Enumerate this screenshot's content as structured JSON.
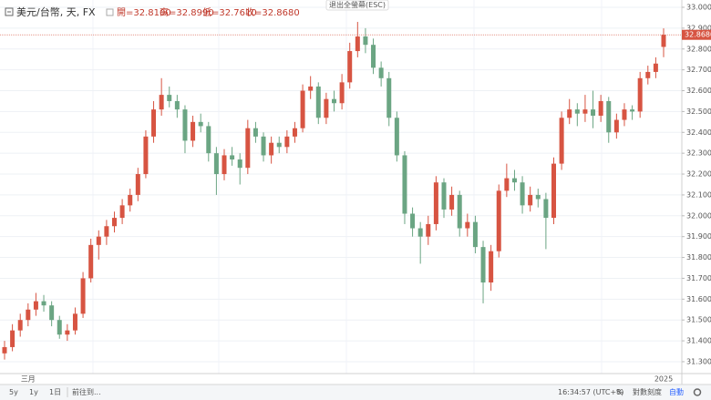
{
  "chart_data": {
    "type": "candlestick",
    "title": "美元/台幣, 天, FX",
    "ohlc_legend": [
      "開=32.8100",
      "高=32.8990",
      "低=32.7610",
      "收=32.8680"
    ],
    "up_color": "#d75442",
    "down_color": "#6ba583",
    "grid": true,
    "ylim": [
      31.243,
      33.035
    ],
    "yticks": [
      {
        "value": 31.3,
        "label": "31.3000"
      },
      {
        "value": 31.4,
        "label": "31.4000"
      },
      {
        "value": 31.5,
        "label": "31.5000"
      },
      {
        "value": 31.6,
        "label": "31.6000"
      },
      {
        "value": 31.7,
        "label": "31.7000"
      },
      {
        "value": 31.8,
        "label": "31.8000"
      },
      {
        "value": 31.9,
        "label": "31.9000"
      },
      {
        "value": 32.0,
        "label": "32.0000"
      },
      {
        "value": 32.1,
        "label": "32.1000"
      },
      {
        "value": 32.2,
        "label": "32.2000"
      },
      {
        "value": 32.3,
        "label": "32.3000"
      },
      {
        "value": 32.4,
        "label": "32.4000"
      },
      {
        "value": 32.5,
        "label": "32.5000"
      },
      {
        "value": 32.6,
        "label": "32.6000"
      },
      {
        "value": 32.7,
        "label": "32.7000"
      },
      {
        "value": 32.8,
        "label": "32.8000"
      },
      {
        "value": 32.9,
        "label": "32.9000"
      },
      {
        "value": 33.0,
        "label": "33.0000"
      }
    ],
    "last_price": {
      "value": 32.868,
      "label": "32.8680"
    },
    "categories": [
      null,
      null,
      null,
      "三月",
      null,
      null,
      null,
      null,
      null,
      null,
      null,
      null,
      null,
      null,
      null,
      null,
      null,
      null,
      null,
      null,
      null,
      null,
      null,
      null,
      null,
      null,
      null,
      null,
      null,
      null,
      null,
      null,
      null,
      null,
      null,
      null,
      null,
      null,
      null,
      null,
      null,
      null,
      null,
      null,
      null,
      null,
      null,
      null,
      null,
      null,
      null,
      null,
      null,
      null,
      null,
      null,
      null,
      null,
      null,
      null,
      null,
      null,
      null,
      null,
      null,
      null,
      null,
      null,
      null,
      null,
      null,
      null,
      null,
      null,
      null,
      null,
      null,
      null,
      null,
      null,
      null,
      null,
      null,
      null,
      "2025"
    ],
    "candles": [
      [
        31.34,
        31.4,
        31.31,
        31.37
      ],
      [
        31.37,
        31.48,
        31.35,
        31.45
      ],
      [
        31.45,
        31.53,
        31.42,
        31.5
      ],
      [
        31.5,
        31.58,
        31.47,
        31.55
      ],
      [
        31.55,
        31.63,
        31.52,
        31.59
      ],
      [
        31.59,
        31.62,
        31.54,
        31.57
      ],
      [
        31.57,
        31.59,
        31.47,
        31.5
      ],
      [
        31.5,
        31.52,
        31.41,
        31.43
      ],
      [
        31.43,
        31.48,
        31.4,
        31.45
      ],
      [
        31.45,
        31.56,
        31.43,
        31.53
      ],
      [
        31.53,
        31.73,
        31.51,
        31.7
      ],
      [
        31.7,
        31.89,
        31.68,
        31.86
      ],
      [
        31.86,
        31.93,
        31.79,
        31.9
      ],
      [
        31.9,
        31.98,
        31.86,
        31.95
      ],
      [
        31.95,
        32.02,
        31.92,
        31.99
      ],
      [
        31.99,
        32.08,
        31.96,
        32.05
      ],
      [
        32.05,
        32.13,
        32.02,
        32.1
      ],
      [
        32.1,
        32.23,
        32.07,
        32.2
      ],
      [
        32.2,
        32.41,
        32.18,
        32.38
      ],
      [
        32.38,
        32.55,
        32.35,
        32.51
      ],
      [
        32.51,
        32.66,
        32.48,
        32.58
      ],
      [
        32.58,
        32.62,
        32.52,
        32.55
      ],
      [
        32.55,
        32.58,
        32.47,
        32.51
      ],
      [
        32.51,
        32.53,
        32.3,
        32.36
      ],
      [
        32.36,
        32.48,
        32.33,
        32.45
      ],
      [
        32.45,
        32.49,
        32.4,
        32.43
      ],
      [
        32.43,
        32.45,
        32.26,
        32.3
      ],
      [
        32.3,
        32.33,
        32.1,
        32.2
      ],
      [
        32.2,
        32.32,
        32.17,
        32.29
      ],
      [
        32.29,
        32.33,
        32.24,
        32.27
      ],
      [
        32.27,
        32.3,
        32.15,
        32.23
      ],
      [
        32.23,
        32.46,
        32.2,
        32.42
      ],
      [
        32.42,
        32.45,
        32.35,
        32.38
      ],
      [
        32.38,
        32.4,
        32.26,
        32.29
      ],
      [
        32.29,
        32.38,
        32.25,
        32.35
      ],
      [
        32.35,
        32.38,
        32.3,
        32.33
      ],
      [
        32.33,
        32.41,
        32.3,
        32.38
      ],
      [
        32.38,
        32.45,
        32.35,
        32.42
      ],
      [
        32.42,
        32.63,
        32.4,
        32.6
      ],
      [
        32.6,
        32.67,
        32.56,
        32.62
      ],
      [
        32.62,
        32.64,
        32.44,
        32.47
      ],
      [
        32.47,
        32.59,
        32.44,
        32.56
      ],
      [
        32.56,
        32.6,
        32.5,
        32.54
      ],
      [
        32.54,
        32.68,
        32.51,
        32.64
      ],
      [
        32.64,
        32.83,
        32.61,
        32.79
      ],
      [
        32.79,
        32.93,
        32.76,
        32.86
      ],
      [
        32.86,
        32.9,
        32.78,
        32.82
      ],
      [
        32.82,
        32.85,
        32.68,
        32.71
      ],
      [
        32.71,
        32.74,
        32.62,
        32.66
      ],
      [
        32.66,
        32.69,
        32.43,
        32.47
      ],
      [
        32.47,
        32.5,
        32.26,
        32.29
      ],
      [
        32.29,
        32.31,
        31.96,
        32.01
      ],
      [
        32.01,
        32.04,
        31.9,
        31.94
      ],
      [
        31.94,
        31.97,
        31.77,
        31.9
      ],
      [
        31.9,
        32.0,
        31.86,
        31.96
      ],
      [
        31.96,
        32.19,
        31.93,
        32.16
      ],
      [
        32.16,
        32.18,
        31.99,
        32.03
      ],
      [
        32.03,
        32.14,
        32.0,
        32.1
      ],
      [
        32.1,
        32.12,
        31.9,
        31.94
      ],
      [
        31.94,
        32.01,
        31.9,
        31.97
      ],
      [
        31.97,
        32.0,
        31.82,
        31.85
      ],
      [
        31.85,
        31.88,
        31.58,
        31.68
      ],
      [
        31.68,
        31.86,
        31.64,
        31.83
      ],
      [
        31.83,
        32.15,
        31.8,
        32.12
      ],
      [
        32.12,
        32.25,
        32.09,
        32.18
      ],
      [
        32.18,
        32.22,
        32.12,
        32.16
      ],
      [
        32.16,
        32.19,
        32.01,
        32.05
      ],
      [
        32.05,
        32.14,
        32.02,
        32.1
      ],
      [
        32.1,
        32.13,
        32.04,
        32.08
      ],
      [
        32.08,
        32.11,
        31.84,
        31.99
      ],
      [
        31.99,
        32.28,
        31.96,
        32.25
      ],
      [
        32.25,
        32.5,
        32.22,
        32.47
      ],
      [
        32.47,
        32.56,
        32.44,
        32.51
      ],
      [
        32.51,
        32.54,
        32.43,
        32.49
      ],
      [
        32.49,
        32.58,
        32.45,
        32.51
      ],
      [
        32.51,
        32.6,
        32.42,
        32.48
      ],
      [
        32.48,
        32.58,
        32.45,
        32.55
      ],
      [
        32.55,
        32.57,
        32.35,
        32.4
      ],
      [
        32.4,
        32.49,
        32.37,
        32.46
      ],
      [
        32.46,
        32.54,
        32.43,
        32.51
      ],
      [
        32.51,
        32.53,
        32.46,
        32.5
      ],
      [
        32.5,
        32.69,
        32.47,
        32.66
      ],
      [
        32.66,
        32.72,
        32.63,
        32.69
      ],
      [
        32.69,
        32.76,
        32.66,
        32.73
      ],
      [
        32.81,
        32.899,
        32.761,
        32.868
      ]
    ]
  },
  "ui": {
    "exit_fullscreen": "退出全螢幕(ESC)",
    "ranges": [
      "5y",
      "1y",
      "1日"
    ],
    "goto": "前往到...",
    "clock": "16:34:57 (UTC+8)",
    "percent": "%",
    "log_scale": "對數刻度",
    "auto": "自動"
  }
}
